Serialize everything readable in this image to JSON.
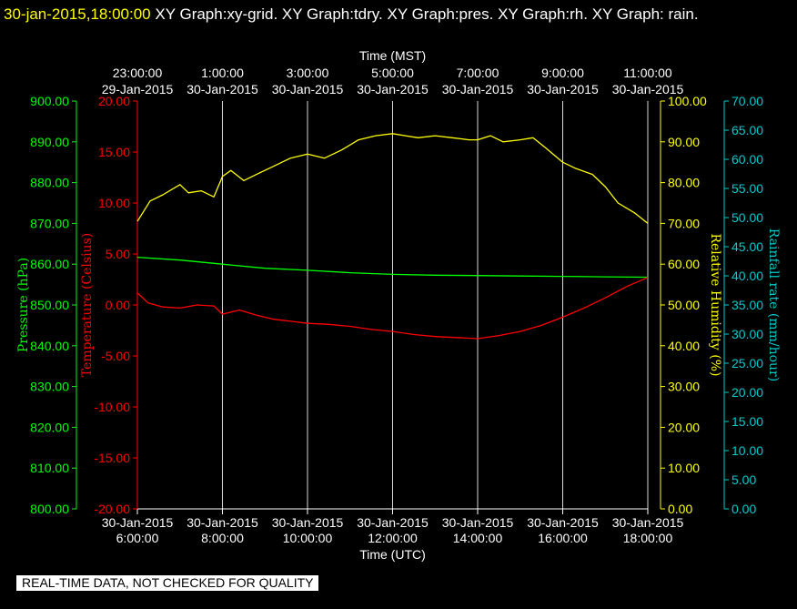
{
  "header": {
    "timestamp": "30-jan-2015,18:00:00",
    "title_rest": "XY Graph:xy-grid.  XY Graph:tdry.  XY Graph:pres.  XY Graph:rh.  XY Graph: rain."
  },
  "footer_note": "REAL-TIME DATA, NOT CHECKED FOR QUALITY",
  "colors": {
    "pressure": "#00ff00",
    "temperature": "#ff0000",
    "humidity": "#ffff00",
    "rain": "#00cccc",
    "grid": "#ffffff",
    "text": "#ffffff"
  },
  "chart_data": {
    "type": "line",
    "xlabel_bottom": "Time (UTC)",
    "xlabel_top": "Time (MST)",
    "x_range_hours_utc": [
      6,
      18
    ],
    "x_ticks_bottom": [
      {
        "hour": 6,
        "date": "30-Jan-2015",
        "time": "6:00:00"
      },
      {
        "hour": 8,
        "date": "30-Jan-2015",
        "time": "8:00:00"
      },
      {
        "hour": 10,
        "date": "30-Jan-2015",
        "time": "10:00:00"
      },
      {
        "hour": 12,
        "date": "30-Jan-2015",
        "time": "12:00:00"
      },
      {
        "hour": 14,
        "date": "30-Jan-2015",
        "time": "14:00:00"
      },
      {
        "hour": 16,
        "date": "30-Jan-2015",
        "time": "16:00:00"
      },
      {
        "hour": 18,
        "date": "30-Jan-2015",
        "time": "18:00:00"
      }
    ],
    "x_ticks_top": [
      {
        "hour": 6,
        "time": "23:00:00",
        "date": "29-Jan-2015"
      },
      {
        "hour": 8,
        "time": "1:00:00",
        "date": "30-Jan-2015"
      },
      {
        "hour": 10,
        "time": "3:00:00",
        "date": "30-Jan-2015"
      },
      {
        "hour": 12,
        "time": "5:00:00",
        "date": "30-Jan-2015"
      },
      {
        "hour": 14,
        "time": "7:00:00",
        "date": "30-Jan-2015"
      },
      {
        "hour": 16,
        "time": "9:00:00",
        "date": "30-Jan-2015"
      },
      {
        "hour": 18,
        "time": "11:00:00",
        "date": "30-Jan-2015"
      }
    ],
    "grid_vertical": true,
    "axes": {
      "pressure": {
        "label": "Pressure (hPa)",
        "range": [
          800,
          900
        ],
        "ticks": [
          "800.00",
          "810.00",
          "820.00",
          "830.00",
          "840.00",
          "850.00",
          "860.00",
          "870.00",
          "880.00",
          "890.00",
          "900.00"
        ]
      },
      "temperature": {
        "label": "Temperature (Celsius)",
        "range": [
          -20,
          20
        ],
        "ticks": [
          "-20.00",
          "-15.00",
          "-10.00",
          "-5.00",
          "0.00",
          "5.00",
          "10.00",
          "15.00",
          "20.00"
        ]
      },
      "humidity": {
        "label": "Relative Humidity (%)",
        "range": [
          0,
          100
        ],
        "ticks": [
          "0.00",
          "10.00",
          "20.00",
          "30.00",
          "40.00",
          "50.00",
          "60.00",
          "70.00",
          "80.00",
          "90.00",
          "100.00"
        ]
      },
      "rain": {
        "label": "Rainfall rate (mm/hour)",
        "range": [
          0,
          70
        ],
        "ticks": [
          "0.00",
          "5.00",
          "10.00",
          "15.00",
          "20.00",
          "25.00",
          "30.00",
          "35.00",
          "40.00",
          "45.00",
          "50.00",
          "55.00",
          "60.00",
          "65.00",
          "70.00"
        ]
      }
    },
    "series": [
      {
        "key": "pressure",
        "x": [
          6.0,
          7.0,
          8.0,
          9.0,
          10.0,
          11.0,
          12.0,
          13.0,
          14.0,
          15.0,
          16.0,
          17.0,
          18.0
        ],
        "y": [
          861.7,
          861.0,
          860.0,
          859.0,
          858.5,
          857.9,
          857.5,
          857.3,
          857.2,
          857.1,
          857.0,
          856.9,
          856.8
        ]
      },
      {
        "key": "temperature",
        "x": [
          6.0,
          6.25,
          6.6,
          7.0,
          7.4,
          7.8,
          8.0,
          8.4,
          8.8,
          9.2,
          9.6,
          10.0,
          10.5,
          11.0,
          11.5,
          12.0,
          12.5,
          13.0,
          13.5,
          14.0,
          14.5,
          15.0,
          15.5,
          16.0,
          16.5,
          17.0,
          17.5,
          18.0
        ],
        "y": [
          1.2,
          0.2,
          -0.2,
          -0.3,
          0.0,
          -0.1,
          -0.9,
          -0.5,
          -1.0,
          -1.4,
          -1.6,
          -1.8,
          -1.9,
          -2.1,
          -2.4,
          -2.6,
          -2.9,
          -3.1,
          -3.2,
          -3.3,
          -3.0,
          -2.6,
          -2.0,
          -1.2,
          -0.3,
          0.7,
          1.8,
          2.7
        ]
      },
      {
        "key": "humidity",
        "x": [
          6.0,
          6.3,
          6.6,
          7.0,
          7.2,
          7.5,
          7.8,
          8.0,
          8.2,
          8.5,
          8.8,
          9.2,
          9.6,
          10.0,
          10.4,
          10.8,
          11.2,
          11.6,
          12.0,
          12.3,
          12.6,
          13.0,
          13.4,
          13.8,
          14.0,
          14.3,
          14.6,
          15.0,
          15.3,
          15.6,
          16.0,
          16.3,
          16.7,
          17.0,
          17.3,
          17.7,
          18.0
        ],
        "y": [
          70.5,
          75.5,
          77.0,
          79.5,
          77.5,
          78.0,
          76.5,
          81.5,
          83.0,
          80.5,
          82.0,
          84.0,
          86.0,
          87.0,
          86.0,
          88.0,
          90.5,
          91.5,
          92.0,
          91.5,
          91.0,
          91.5,
          91.0,
          90.5,
          90.5,
          91.5,
          90.0,
          90.5,
          91.0,
          88.5,
          85.0,
          83.5,
          82.0,
          79.0,
          75.0,
          72.5,
          70.0
        ]
      }
    ]
  }
}
